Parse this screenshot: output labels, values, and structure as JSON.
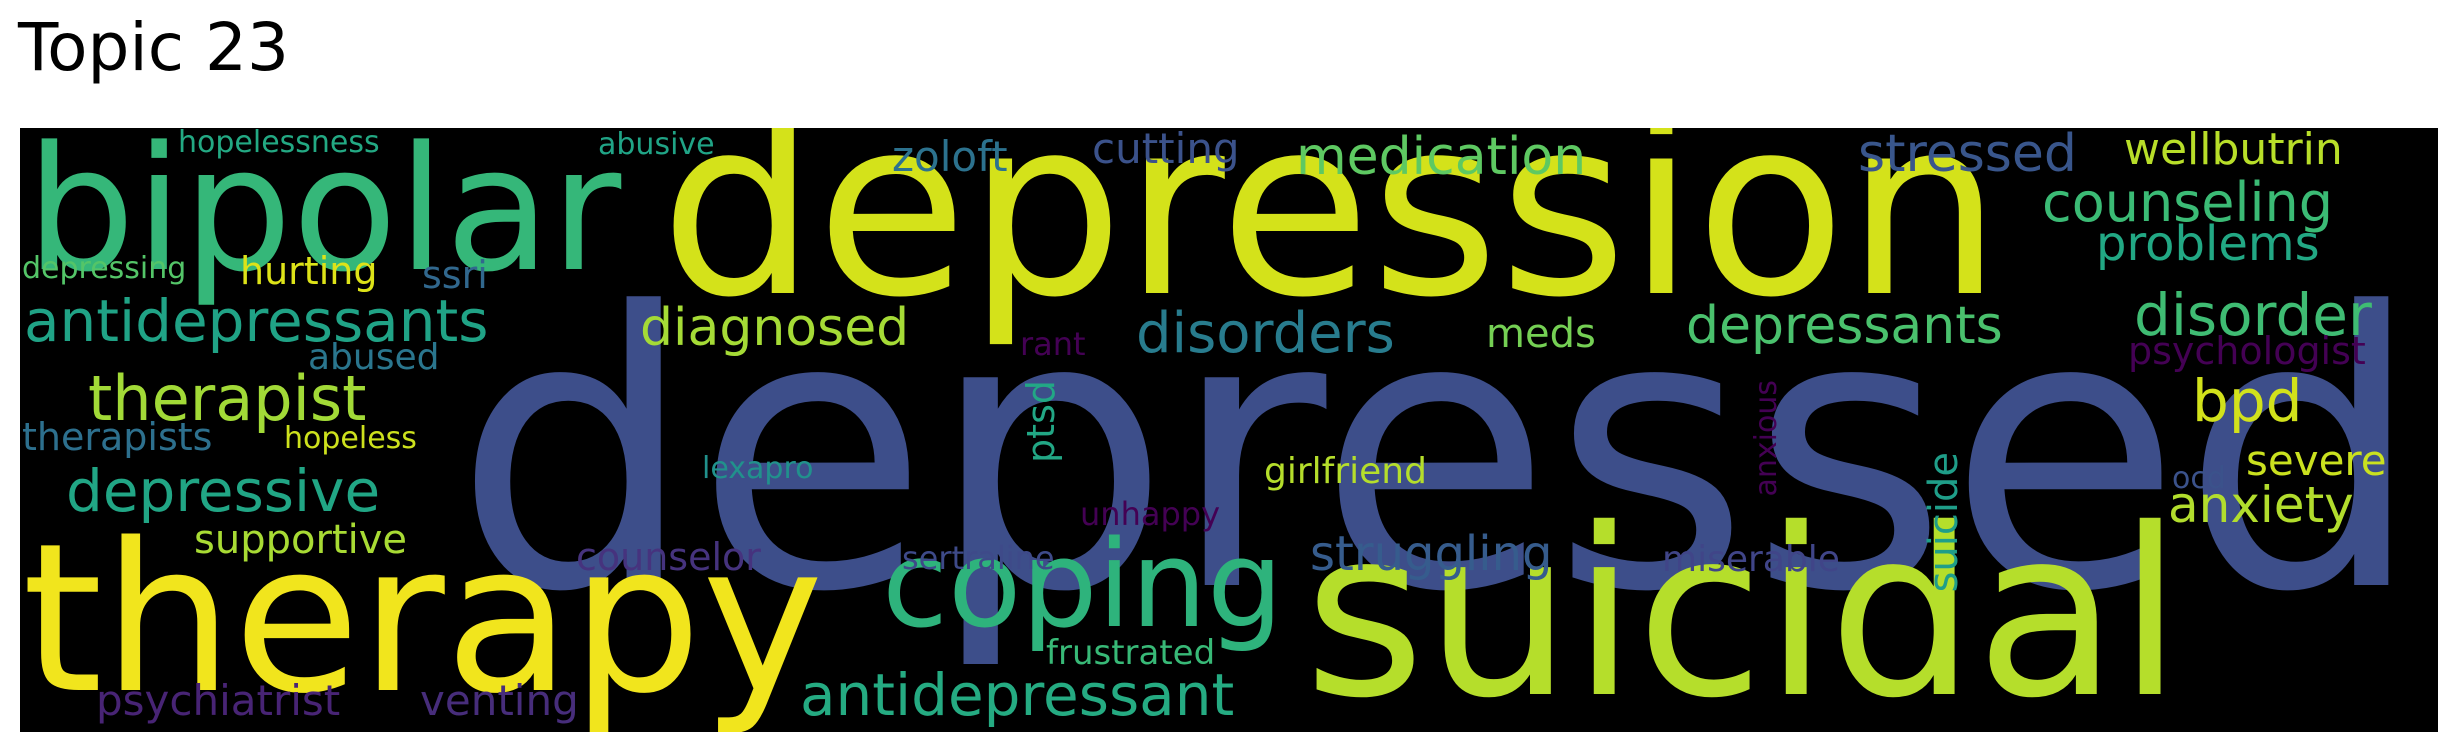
{
  "title": "Topic 23",
  "words": [
    {
      "text": "depressed",
      "color": "#3d4e8a"
    },
    {
      "text": "depression",
      "color": "#d4e21a"
    },
    {
      "text": "therapy",
      "color": "#f1e51d"
    },
    {
      "text": "suicidal",
      "color": "#b5de2b"
    },
    {
      "text": "bipolar",
      "color": "#35b779"
    },
    {
      "text": "coping",
      "color": "#2eb37c"
    },
    {
      "text": "antidepressant",
      "color": "#25ab82"
    },
    {
      "text": "antidepressants",
      "color": "#20a386"
    },
    {
      "text": "therapist",
      "color": "#a2da37"
    },
    {
      "text": "depressive",
      "color": "#21a685"
    },
    {
      "text": "medication",
      "color": "#5ec962"
    },
    {
      "text": "counseling",
      "color": "#3bbb75"
    },
    {
      "text": "stressed",
      "color": "#39568c"
    },
    {
      "text": "wellbutrin",
      "color": "#b8de29"
    },
    {
      "text": "problems",
      "color": "#22a884"
    },
    {
      "text": "disorder",
      "color": "#3fbc73"
    },
    {
      "text": "depressants",
      "color": "#4ac16d"
    },
    {
      "text": "disorders",
      "color": "#287c8e"
    },
    {
      "text": "diagnosed",
      "color": "#a5db36"
    },
    {
      "text": "zoloft",
      "color": "#2c728e"
    },
    {
      "text": "cutting",
      "color": "#3b528b"
    },
    {
      "text": "struggling",
      "color": "#365c8d"
    },
    {
      "text": "bpd",
      "color": "#d2e21b"
    },
    {
      "text": "anxiety",
      "color": "#b2dd2d"
    },
    {
      "text": "severe",
      "color": "#cae11f"
    },
    {
      "text": "supportive",
      "color": "#a8db34"
    },
    {
      "text": "hurting",
      "color": "#dde318"
    },
    {
      "text": "ssri",
      "color": "#31688e"
    },
    {
      "text": "meds",
      "color": "#75d054"
    },
    {
      "text": "hopelessness",
      "color": "#23a983"
    },
    {
      "text": "abusive",
      "color": "#20a486"
    },
    {
      "text": "depressing",
      "color": "#54c568"
    },
    {
      "text": "abused",
      "color": "#2a768e"
    },
    {
      "text": "therapists",
      "color": "#2d708e"
    },
    {
      "text": "hopeless",
      "color": "#cde11d"
    },
    {
      "text": "psychologist",
      "color": "#440154"
    },
    {
      "text": "rant",
      "color": "#440154"
    },
    {
      "text": "ptsd",
      "color": "#22a785"
    },
    {
      "text": "lexapro",
      "color": "#21918c"
    },
    {
      "text": "girlfriend",
      "color": "#b5de2b"
    },
    {
      "text": "anxious",
      "color": "#440154"
    },
    {
      "text": "suicide",
      "color": "#1f9e89"
    },
    {
      "text": "ocd",
      "color": "#3b528b"
    },
    {
      "text": "unhappy",
      "color": "#440154"
    },
    {
      "text": "counselor",
      "color": "#46337e"
    },
    {
      "text": "sertraline",
      "color": "#3e4a89"
    },
    {
      "text": "miserable",
      "color": "#404588"
    },
    {
      "text": "frustrated",
      "color": "#38b977"
    },
    {
      "text": "psychiatrist",
      "color": "#482475"
    },
    {
      "text": "venting",
      "color": "#472d7b"
    }
  ]
}
